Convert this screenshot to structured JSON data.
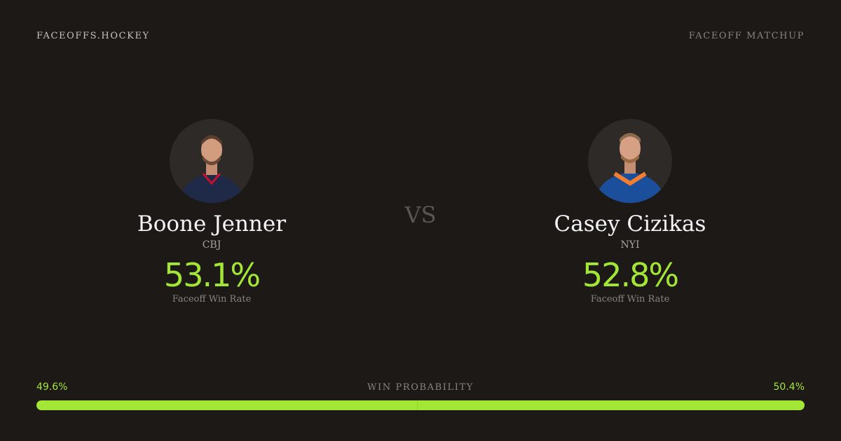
{
  "header": {
    "brand": "FACEOFFS.HOCKEY",
    "label": "FACEOFF MATCHUP"
  },
  "players": [
    {
      "name": "Boone Jenner",
      "team": "CBJ",
      "rate": "53.1%",
      "caption": "Faceoff Win Rate"
    },
    {
      "name": "Casey Cizikas",
      "team": "NYI",
      "rate": "52.8%",
      "caption": "Faceoff Win Rate"
    }
  ],
  "versus": "VS",
  "win_probability": {
    "label": "WIN PROBABILITY",
    "values": [
      49.6,
      50.4
    ],
    "value_labels": [
      "49.6%",
      "50.4%"
    ]
  }
}
